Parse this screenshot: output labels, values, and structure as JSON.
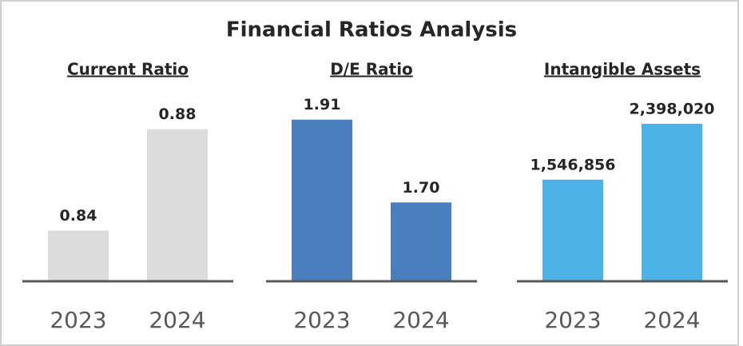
{
  "title": "Financial Ratios Analysis",
  "chart_data": [
    {
      "type": "bar",
      "title": "Current Ratio",
      "categories": [
        "2023",
        "2024"
      ],
      "values": [
        0.84,
        0.88
      ],
      "color": "#dcdcdc",
      "ylim": [
        0.82,
        0.89
      ]
    },
    {
      "type": "bar",
      "title": "D/E Ratio",
      "categories": [
        "2023",
        "2024"
      ],
      "values": [
        1.91,
        1.7
      ],
      "value_labels": [
        "1.91",
        "1.70"
      ],
      "color": "#4a7ebf",
      "ylim": [
        1.5,
        1.95
      ]
    },
    {
      "type": "bar",
      "title": "Intangible Assets",
      "categories": [
        "2023",
        "2024"
      ],
      "values": [
        1546856,
        2398020
      ],
      "value_labels": [
        "1,546,856",
        "2,398,020"
      ],
      "color": "#4db3e6",
      "ylim": [
        0,
        2700000
      ]
    }
  ]
}
